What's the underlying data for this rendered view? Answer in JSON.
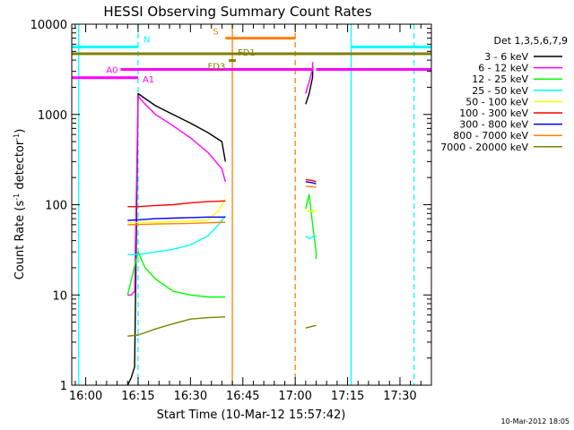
{
  "chart_data": {
    "type": "line",
    "title": "HESSI Observing Summary Count Rates",
    "xlabel": "Start Time (10-Mar-12 15:57:42)",
    "ylabel": "Count Rate (s⁻¹ detector⁻¹)",
    "ylabel_main": "Count Rate (s",
    "ylabel_mid": " detector",
    "ylabel_end": ")",
    "ylabel_sup": "-1",
    "footer": "10-Mar-2012 18:05",
    "y_scale": "log",
    "ylim": [
      1,
      10000
    ],
    "xlim": [
      "15:56",
      "17:39"
    ],
    "x_ticks": [
      "16:00",
      "16:15",
      "16:30",
      "16:45",
      "17:00",
      "17:15",
      "17:30"
    ],
    "y_ticks": [
      "1",
      "10",
      "100",
      "1000",
      "10000"
    ],
    "legend_title": "Det 1,3,5,6,7,9",
    "legend_position": "right",
    "series": [
      {
        "name": "3 - 6 keV",
        "color": "#000000",
        "points": [
          [
            "16:12",
            1
          ],
          [
            "16:13",
            1.2
          ],
          [
            "16:14",
            1.6
          ],
          [
            "16:15",
            1700
          ],
          [
            "16:17",
            1500
          ],
          [
            "16:20",
            1250
          ],
          [
            "16:25",
            1000
          ],
          [
            "16:30",
            800
          ],
          [
            "16:35",
            630
          ],
          [
            "16:39",
            500
          ],
          [
            "16:40",
            300
          ],
          null,
          [
            "17:03",
            1300
          ],
          [
            "17:04",
            1700
          ],
          [
            "17:05",
            2600
          ],
          [
            "17:05",
            3400
          ]
        ]
      },
      {
        "name": "6 - 12 keV",
        "color": "#ff00ff",
        "points": [
          [
            "16:12",
            10
          ],
          [
            "16:13",
            10
          ],
          [
            "16:14",
            11
          ],
          [
            "16:15",
            1600
          ],
          [
            "16:17",
            1300
          ],
          [
            "16:20",
            1000
          ],
          [
            "16:25",
            750
          ],
          [
            "16:30",
            550
          ],
          [
            "16:35",
            380
          ],
          [
            "16:39",
            250
          ],
          [
            "16:40",
            180
          ],
          null,
          [
            "17:03",
            1700
          ],
          [
            "17:04",
            2300
          ],
          [
            "17:05",
            3200
          ],
          [
            "17:05",
            3800
          ]
        ]
      },
      {
        "name": "12 - 25 keV",
        "color": "#00ff00",
        "points": [
          [
            "16:12",
            10
          ],
          [
            "16:15",
            30
          ],
          [
            "16:17",
            20
          ],
          [
            "16:20",
            15
          ],
          [
            "16:25",
            11
          ],
          [
            "16:30",
            10
          ],
          [
            "16:35",
            9.5
          ],
          [
            "16:40",
            9.5
          ],
          null,
          [
            "17:03",
            90
          ],
          [
            "17:04",
            130
          ],
          [
            "17:05",
            60
          ],
          [
            "17:06",
            30
          ],
          [
            "17:06",
            25
          ]
        ]
      },
      {
        "name": "25 - 50 keV",
        "color": "#00ffff",
        "points": [
          [
            "16:12",
            28
          ],
          [
            "16:15",
            28
          ],
          [
            "16:20",
            30
          ],
          [
            "16:25",
            32
          ],
          [
            "16:30",
            36
          ],
          [
            "16:35",
            45
          ],
          [
            "16:38",
            60
          ],
          [
            "16:40",
            75
          ],
          null,
          [
            "17:03",
            45
          ],
          [
            "17:04",
            42
          ],
          [
            "17:05",
            44
          ],
          [
            "17:06",
            45
          ]
        ]
      },
      {
        "name": "50 - 100 keV",
        "color": "#ffff00",
        "points": [
          [
            "16:12",
            63
          ],
          [
            "16:20",
            64
          ],
          [
            "16:30",
            66
          ],
          [
            "16:35",
            68
          ],
          [
            "16:38",
            85
          ],
          [
            "16:40",
            115
          ],
          null,
          [
            "17:03",
            85
          ],
          [
            "17:05",
            85
          ],
          [
            "17:06",
            85
          ]
        ]
      },
      {
        "name": "100 - 300 keV",
        "color": "#ff0000",
        "points": [
          [
            "16:12",
            95
          ],
          [
            "16:15",
            95
          ],
          [
            "16:20",
            98
          ],
          [
            "16:25",
            100
          ],
          [
            "16:30",
            105
          ],
          [
            "16:35",
            108
          ],
          [
            "16:40",
            110
          ],
          null,
          [
            "17:03",
            190
          ],
          [
            "17:05",
            185
          ],
          [
            "17:06",
            180
          ]
        ]
      },
      {
        "name": "300 - 800 keV",
        "color": "#0000ff",
        "points": [
          [
            "16:12",
            67
          ],
          [
            "16:15",
            68
          ],
          [
            "16:20",
            70
          ],
          [
            "16:25",
            71
          ],
          [
            "16:30",
            72
          ],
          [
            "16:35",
            73
          ],
          [
            "16:40",
            73
          ],
          null,
          [
            "17:03",
            180
          ],
          [
            "17:05",
            175
          ],
          [
            "17:06",
            170
          ]
        ]
      },
      {
        "name": "800 - 7000 keV",
        "color": "#ff8000",
        "points": [
          [
            "16:12",
            60
          ],
          [
            "16:20",
            61
          ],
          [
            "16:30",
            62
          ],
          [
            "16:35",
            63
          ],
          [
            "16:40",
            64
          ],
          null,
          [
            "17:03",
            160
          ],
          [
            "17:05",
            158
          ],
          [
            "17:06",
            155
          ]
        ]
      },
      {
        "name": "7000 - 20000 keV",
        "color": "#808000",
        "points": [
          [
            "16:12",
            3.5
          ],
          [
            "16:15",
            3.6
          ],
          [
            "16:20",
            4.2
          ],
          [
            "16:25",
            4.8
          ],
          [
            "16:30",
            5.4
          ],
          [
            "16:35",
            5.6
          ],
          [
            "16:40",
            5.7
          ],
          null,
          [
            "17:03",
            4.3
          ],
          [
            "17:05",
            4.5
          ],
          [
            "17:06",
            4.6
          ]
        ]
      }
    ],
    "flags": [
      {
        "name": "N",
        "color": "#00ffff",
        "y": 5600,
        "segments": [
          [
            "15:56",
            "16:15"
          ],
          [
            "17:16",
            "17:39"
          ]
        ]
      },
      {
        "name": "S",
        "color": "#ff8000",
        "y": 7000,
        "segments": [
          [
            "16:40",
            "17:00"
          ]
        ]
      },
      {
        "name": "FD1",
        "color": "#808000",
        "y": 4700,
        "segments": [
          [
            "15:56",
            "17:39"
          ]
        ]
      },
      {
        "name": "FD3",
        "color": "#808000",
        "y": 3950,
        "segments": [
          [
            "16:41",
            "16:43"
          ]
        ]
      },
      {
        "name": "A0",
        "color": "#ff00ff",
        "y": 3150,
        "segments": [
          [
            "16:10",
            "17:05"
          ],
          [
            "17:06",
            "17:39"
          ]
        ]
      },
      {
        "name": "A1",
        "color": "#ff00ff",
        "y": 2550,
        "segments": [
          [
            "15:56",
            "16:15"
          ]
        ]
      }
    ],
    "vlines": [
      {
        "x": "15:58",
        "color": "#00ffff",
        "style": "solid"
      },
      {
        "x": "16:15",
        "color": "#00ffff",
        "style": "dashed"
      },
      {
        "x": "16:42",
        "color": "#ff8000",
        "style": "solid"
      },
      {
        "x": "17:00",
        "color": "#ff8000",
        "style": "dashed"
      },
      {
        "x": "17:16",
        "color": "#00ffff",
        "style": "solid"
      },
      {
        "x": "17:34",
        "color": "#00ffff",
        "style": "dashed"
      }
    ]
  }
}
